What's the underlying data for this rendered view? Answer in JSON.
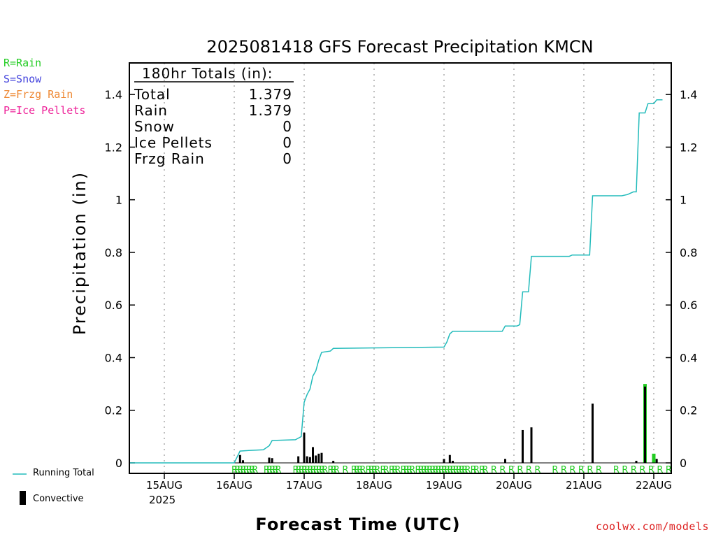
{
  "page": {
    "precip_type_legend": [
      {
        "label": "R=Rain",
        "color": "#22cc22"
      },
      {
        "label": "S=Snow",
        "color": "#4444dd"
      },
      {
        "label": "Z=Frzg Rain",
        "color": "#ee8833"
      },
      {
        "label": "P=Ice Pellets",
        "color": "#ee2299"
      }
    ],
    "running_total_label": "Running Total",
    "convective_label": "Convective",
    "credit": "coolwx.com/models"
  },
  "chart_data": {
    "type": "bar",
    "title": "2025081418 GFS Forecast Precipitation KMCN",
    "xlabel": "Forecast Time (UTC)",
    "ylabel": "Precipitation (in)",
    "ylim": [
      0,
      1.52
    ],
    "xlim_hours": [
      -6,
      180
    ],
    "yticks": [
      0,
      0.2,
      0.4,
      0.6,
      0.8,
      1,
      1.2,
      1.4
    ],
    "yticklabels": [
      "0",
      "0.2",
      "0.4",
      "0.6",
      "0.8",
      "1",
      "1.2",
      "1.4"
    ],
    "xticks": [
      {
        "hour": 6,
        "label": "15AUG",
        "sublabel": "2025"
      },
      {
        "hour": 30,
        "label": "16AUG"
      },
      {
        "hour": 54,
        "label": "17AUG"
      },
      {
        "hour": 78,
        "label": "18AUG"
      },
      {
        "hour": 102,
        "label": "19AUG"
      },
      {
        "hour": 126,
        "label": "20AUG"
      },
      {
        "hour": 150,
        "label": "21AUG"
      },
      {
        "hour": 174,
        "label": "22AUG"
      }
    ],
    "grid": "vertical dotted at day ticks",
    "totals_box": {
      "header": "180hr Totals (in):",
      "rows": [
        {
          "label": "Total",
          "value": "1.379"
        },
        {
          "label": "Rain",
          "value": "1.379"
        },
        {
          "label": "Snow",
          "value": "0"
        },
        {
          "label": "Ice Pellets",
          "value": "0"
        },
        {
          "label": "Frzg Rain",
          "value": "0"
        }
      ]
    },
    "colors": {
      "running_total": "#22bbbb",
      "rain": "#22cc22",
      "convective": "#000000",
      "grid": "#aaaaaa"
    },
    "series": [
      {
        "name": "Running Total",
        "type": "step-line",
        "points": [
          [
            -6,
            0
          ],
          [
            30,
            0
          ],
          [
            32,
            0.045
          ],
          [
            35,
            0.047
          ],
          [
            40,
            0.05
          ],
          [
            42,
            0.065
          ],
          [
            43,
            0.085
          ],
          [
            51,
            0.088
          ],
          [
            53,
            0.1
          ],
          [
            54,
            0.23
          ],
          [
            55,
            0.26
          ],
          [
            56,
            0.28
          ],
          [
            57,
            0.33
          ],
          [
            58,
            0.35
          ],
          [
            59,
            0.39
          ],
          [
            60,
            0.42
          ],
          [
            63,
            0.425
          ],
          [
            64,
            0.435
          ],
          [
            102,
            0.44
          ],
          [
            103,
            0.46
          ],
          [
            104,
            0.49
          ],
          [
            105,
            0.5
          ],
          [
            122,
            0.5
          ],
          [
            123,
            0.52
          ],
          [
            127,
            0.52
          ],
          [
            128,
            0.525
          ],
          [
            129,
            0.65
          ],
          [
            131,
            0.65
          ],
          [
            132,
            0.785
          ],
          [
            145,
            0.785
          ],
          [
            146,
            0.79
          ],
          [
            152,
            0.79
          ],
          [
            153,
            1.015
          ],
          [
            163,
            1.015
          ],
          [
            165,
            1.02
          ],
          [
            167,
            1.03
          ],
          [
            168,
            1.03
          ],
          [
            169,
            1.33
          ],
          [
            171,
            1.33
          ],
          [
            172,
            1.365
          ],
          [
            174,
            1.365
          ],
          [
            175,
            1.38
          ],
          [
            177,
            1.38
          ]
        ]
      },
      {
        "name": "Convective",
        "type": "bars",
        "values": [
          [
            32,
            0.03
          ],
          [
            33,
            0.01
          ],
          [
            42,
            0.02
          ],
          [
            43,
            0.018
          ],
          [
            52,
            0.025
          ],
          [
            54,
            0.115
          ],
          [
            55,
            0.025
          ],
          [
            56,
            0.022
          ],
          [
            57,
            0.06
          ],
          [
            58,
            0.028
          ],
          [
            59,
            0.035
          ],
          [
            60,
            0.038
          ],
          [
            64,
            0.008
          ],
          [
            102,
            0.015
          ],
          [
            104,
            0.03
          ],
          [
            105,
            0.008
          ],
          [
            123,
            0.015
          ],
          [
            129,
            0.125
          ],
          [
            132,
            0.135
          ],
          [
            153,
            0.225
          ],
          [
            168,
            0.008
          ],
          [
            171,
            0.29
          ],
          [
            175,
            0.015
          ]
        ]
      },
      {
        "name": "Total Precip",
        "type": "bars",
        "values": [
          [
            171,
            0.3
          ],
          [
            174,
            0.035
          ]
        ]
      }
    ],
    "precip_type_markers": {
      "label": "R",
      "hours": [
        30,
        31,
        32,
        33,
        34,
        35,
        36,
        37,
        41,
        42,
        43,
        44,
        45,
        51,
        52,
        53,
        54,
        55,
        56,
        57,
        58,
        59,
        60,
        61,
        63,
        64,
        65,
        68,
        71,
        72,
        73,
        74,
        76,
        77,
        78,
        79,
        81,
        82,
        84,
        85,
        86,
        88,
        89,
        90,
        91,
        93,
        94,
        95,
        96,
        97,
        98,
        99,
        100,
        101,
        102,
        103,
        104,
        105,
        106,
        107,
        108,
        109,
        110,
        112,
        113,
        115,
        116,
        119,
        122,
        125,
        128,
        131,
        134,
        140,
        143,
        146,
        149,
        152,
        155,
        161,
        164,
        167,
        170,
        173,
        176,
        179
      ]
    }
  }
}
